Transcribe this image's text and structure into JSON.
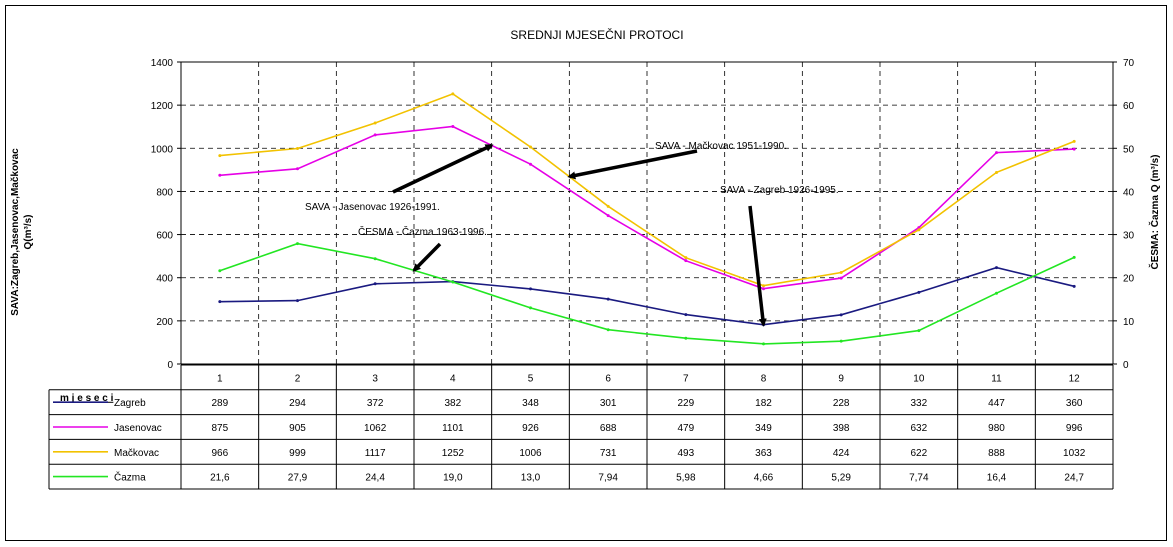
{
  "chart_data": {
    "type": "line",
    "title": "SREDNJI MJESEČNI PROTOCI",
    "x": [
      "1",
      "2",
      "3",
      "4",
      "5",
      "6",
      "7",
      "8",
      "9",
      "10",
      "11",
      "12"
    ],
    "xlabel": "m j e s e c i",
    "ylabel_left": "SAVA:Zagreb,Jasenovac,Mačkovac Q(m³/s)",
    "ylabel_left_lines": [
      "SAVA:Zagreb,Jasenovac,Mačkovac",
      "Q(m³/s)"
    ],
    "ylabel_right": "ČESMA: Čazma Q (m³/s)",
    "ylim_left": [
      0,
      1400
    ],
    "ylim_right": [
      0,
      70
    ],
    "yticks_left": [
      0,
      200,
      400,
      600,
      800,
      1000,
      1200,
      1400
    ],
    "yticks_right": [
      0,
      10,
      20,
      30,
      40,
      50,
      60,
      70
    ],
    "grid": true,
    "series": [
      {
        "name": "Zagreb",
        "axis": "left",
        "color": "#1a1a80",
        "values": [
          289,
          294,
          372,
          382,
          348,
          301,
          229,
          182,
          228,
          332,
          447,
          360
        ],
        "labels": [
          "289",
          "294",
          "372",
          "382",
          "348",
          "301",
          "229",
          "182",
          "228",
          "332",
          "447",
          "360"
        ]
      },
      {
        "name": "Jasenovac",
        "axis": "left",
        "color": "#e600e6",
        "values": [
          875,
          905,
          1062,
          1101,
          926,
          688,
          479,
          349,
          398,
          632,
          980,
          996
        ],
        "labels": [
          "875",
          "905",
          "1062",
          "1101",
          "926",
          "688",
          "479",
          "349",
          "398",
          "632",
          "980",
          "996"
        ]
      },
      {
        "name": "Mačkovac",
        "axis": "left",
        "color": "#f2c200",
        "values": [
          966,
          999,
          1117,
          1252,
          1006,
          731,
          493,
          363,
          424,
          622,
          888,
          1032
        ],
        "labels": [
          "966",
          "999",
          "1117",
          "1252",
          "1006",
          "731",
          "493",
          "363",
          "424",
          "622",
          "888",
          "1032"
        ]
      },
      {
        "name": "Čazma",
        "axis": "right",
        "color": "#22e622",
        "values": [
          21.6,
          27.9,
          24.4,
          19.0,
          13.0,
          7.94,
          5.98,
          4.66,
          5.29,
          7.74,
          16.4,
          24.7
        ],
        "labels": [
          "21,6",
          "27,9",
          "24,4",
          "19,0",
          "13,0",
          "7,94",
          "5,98",
          "4,66",
          "5,29",
          "7,74",
          "16,4",
          "24,7"
        ]
      }
    ],
    "annotations": [
      {
        "text": "SAVA - Mačkovac 1951-1990.",
        "points_to_series": "Mačkovac"
      },
      {
        "text": "SAVA - Jasenovac 1926-1991.",
        "points_to_series": "Jasenovac"
      },
      {
        "text": "ČESMA - Čazma 1963-1996.",
        "points_to_series": "Čazma"
      },
      {
        "text": "SAVA - Zagreb 1926-1995.",
        "points_to_series": "Zagreb"
      }
    ]
  }
}
